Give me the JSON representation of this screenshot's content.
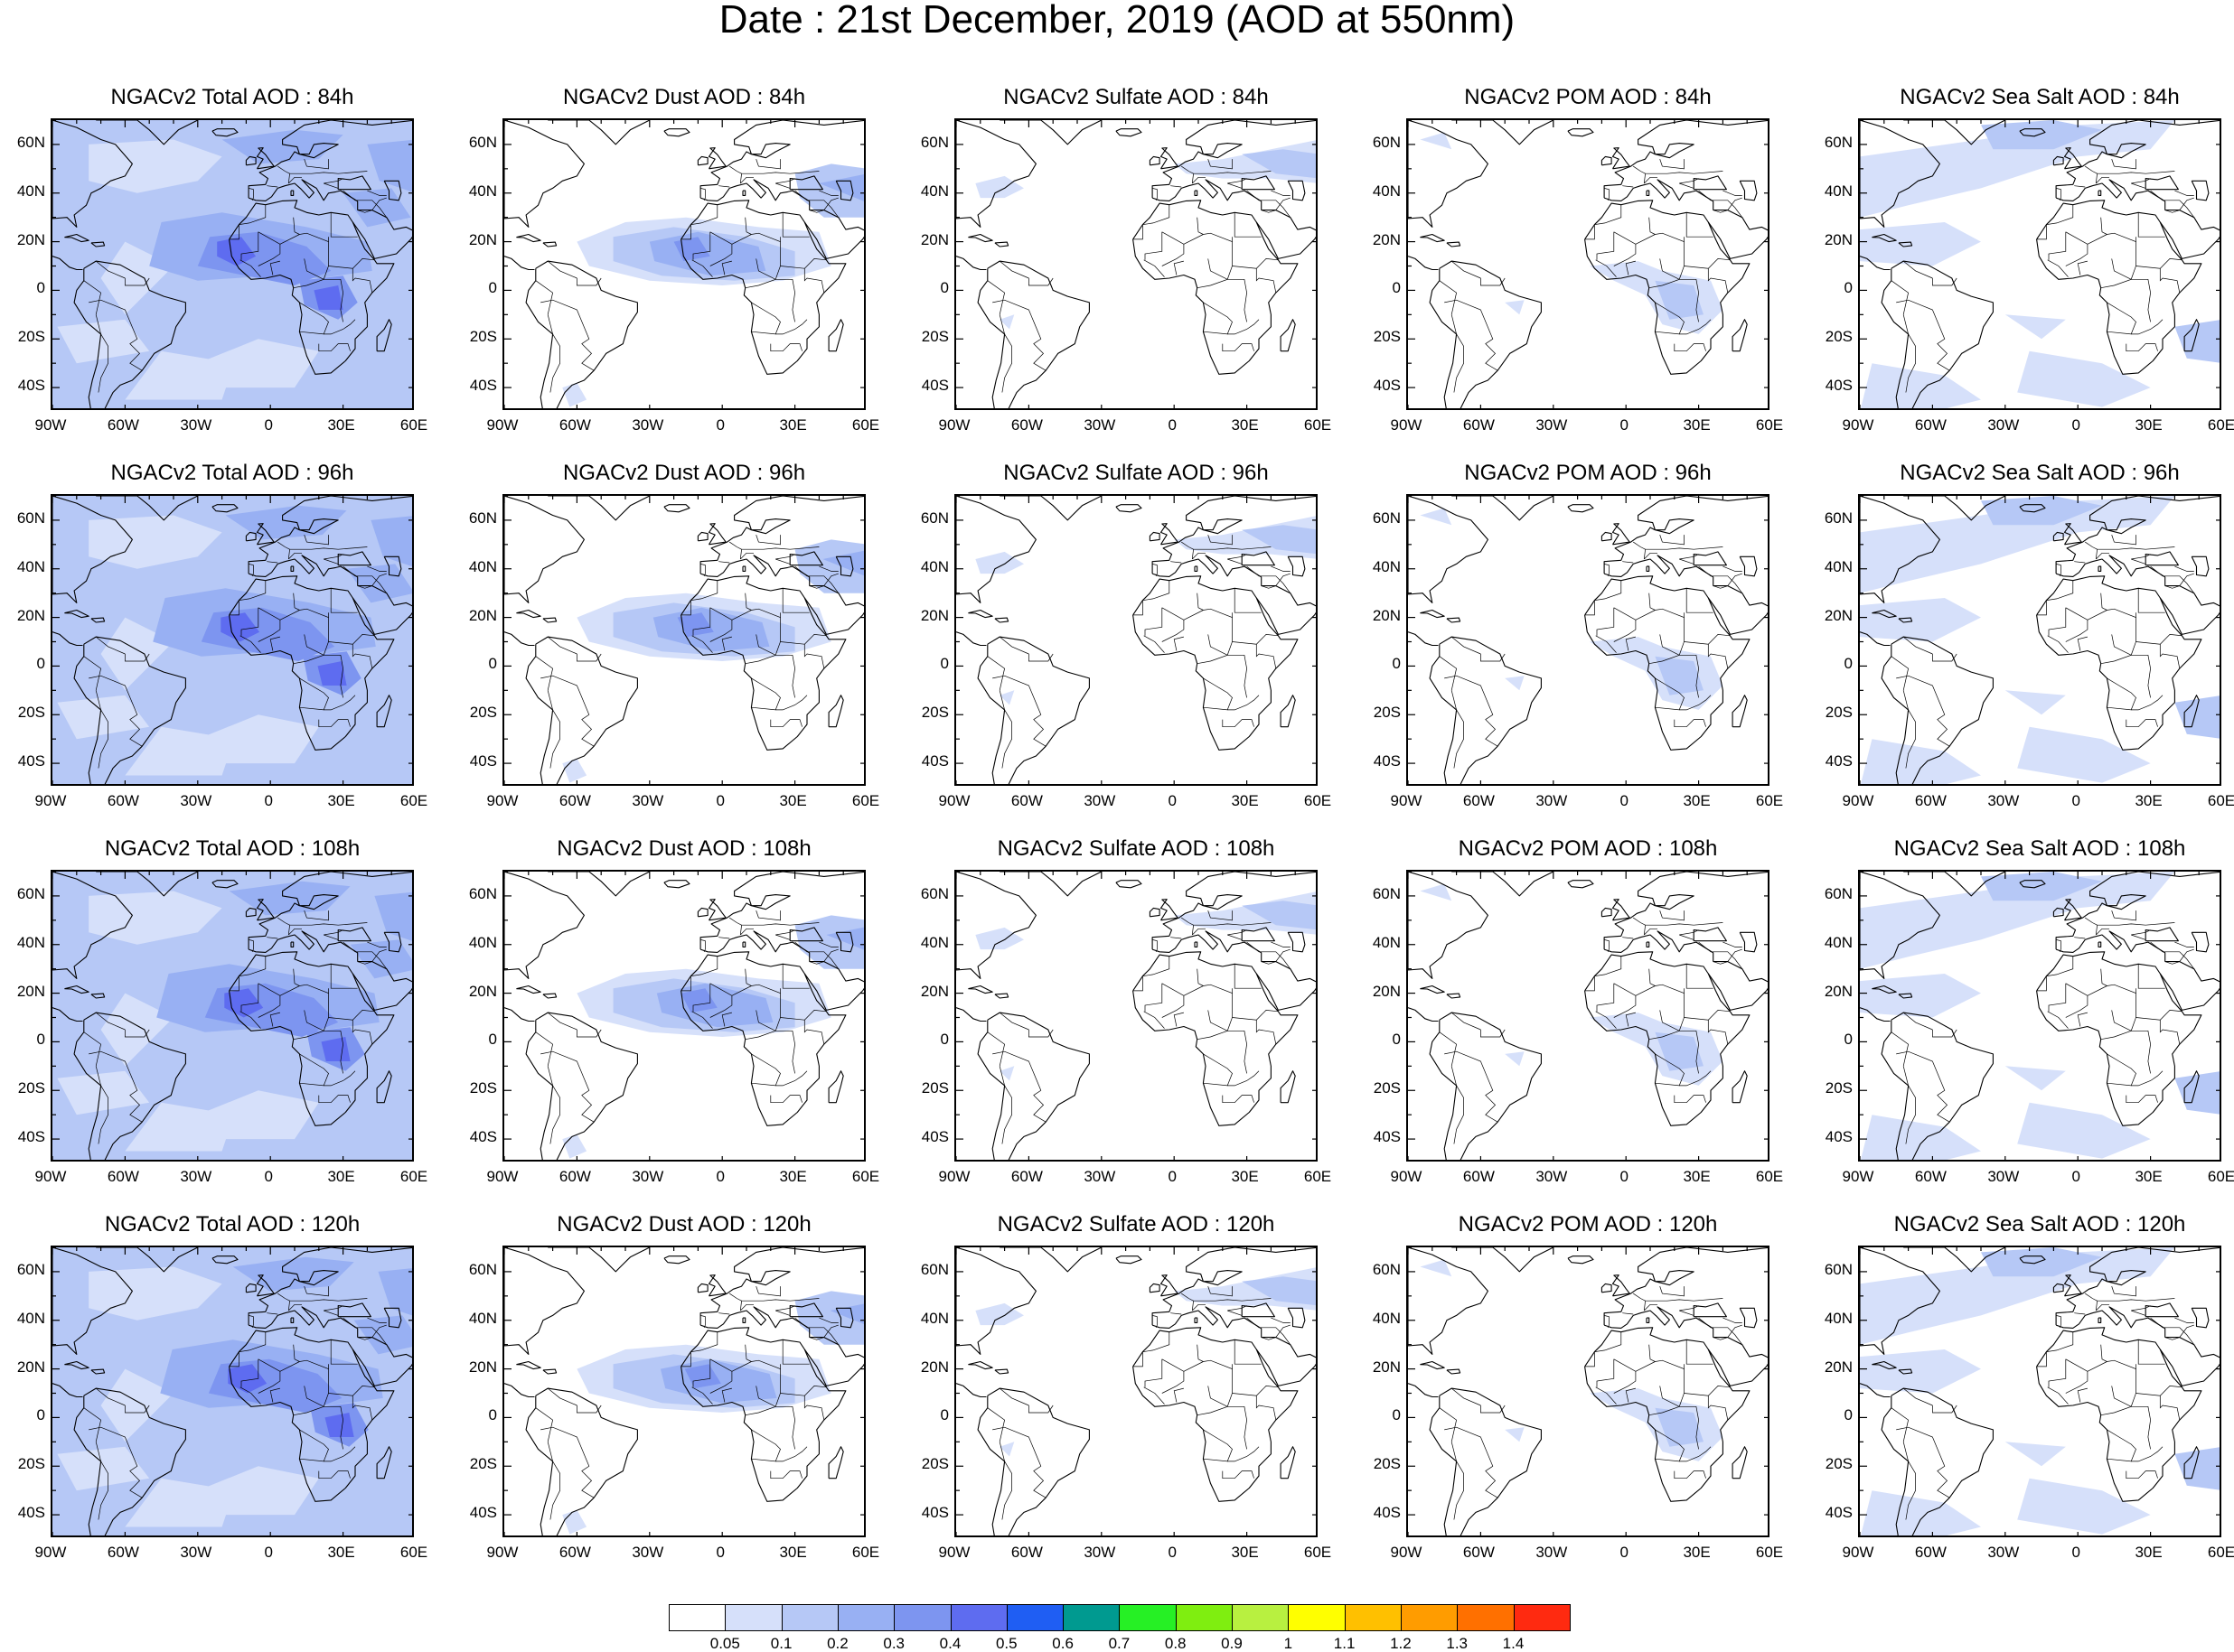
{
  "title": "Date : 21st December, 2019 (AOD at 550nm)",
  "map_extent": {
    "lon": [
      -90,
      60
    ],
    "lat": [
      -50,
      70
    ]
  },
  "lat_ticks": [
    {
      "value": 60,
      "label": "60N"
    },
    {
      "value": 40,
      "label": "40N"
    },
    {
      "value": 20,
      "label": "20N"
    },
    {
      "value": 0,
      "label": "0"
    },
    {
      "value": -20,
      "label": "20S"
    },
    {
      "value": -40,
      "label": "40S"
    }
  ],
  "lon_ticks": [
    {
      "value": -90,
      "label": "90W"
    },
    {
      "value": -60,
      "label": "60W"
    },
    {
      "value": -30,
      "label": "30W"
    },
    {
      "value": 0,
      "label": "0"
    },
    {
      "value": 30,
      "label": "30E"
    },
    {
      "value": 60,
      "label": "60E"
    }
  ],
  "species": [
    "Total",
    "Dust",
    "Sulfate",
    "POM",
    "Sea Salt"
  ],
  "forecast_hours": [
    "84h",
    "96h",
    "108h",
    "120h"
  ],
  "panels": [
    [
      "NGACv2 Total AOD : 84h",
      "NGACv2 Dust AOD : 84h",
      "NGACv2 Sulfate AOD : 84h",
      "NGACv2 POM AOD : 84h",
      "NGACv2 Sea Salt AOD : 84h"
    ],
    [
      "NGACv2 Total AOD : 96h",
      "NGACv2 Dust AOD : 96h",
      "NGACv2 Sulfate AOD : 96h",
      "NGACv2 POM AOD : 96h",
      "NGACv2 Sea Salt AOD : 96h"
    ],
    [
      "NGACv2 Total AOD : 108h",
      "NGACv2 Dust AOD : 108h",
      "NGACv2 Sulfate AOD : 108h",
      "NGACv2 POM AOD : 108h",
      "NGACv2 Sea Salt AOD : 108h"
    ],
    [
      "NGACv2 Total AOD : 120h",
      "NGACv2 Dust AOD : 120h",
      "NGACv2 Sulfate AOD : 120h",
      "NGACv2 POM AOD : 120h",
      "NGACv2 Sea Salt  AOD : 120h"
    ]
  ],
  "colorbar": {
    "labels": [
      "0.05",
      "0.1",
      "0.2",
      "0.3",
      "0.4",
      "0.5",
      "0.6",
      "0.7",
      "0.8",
      "0.9",
      "1",
      "1.1",
      "1.2",
      "1.3",
      "1.4"
    ],
    "colors": [
      "#ffffff",
      "#d6e0fa",
      "#b6c8f6",
      "#98b0f3",
      "#7d95f0",
      "#5e6cf0",
      "#1f5ef3",
      "#009a90",
      "#26f025",
      "#7fee10",
      "#b8f040",
      "#ffff00",
      "#ffc000",
      "#ff9c00",
      "#ff7000",
      "#ff2a10"
    ]
  }
}
